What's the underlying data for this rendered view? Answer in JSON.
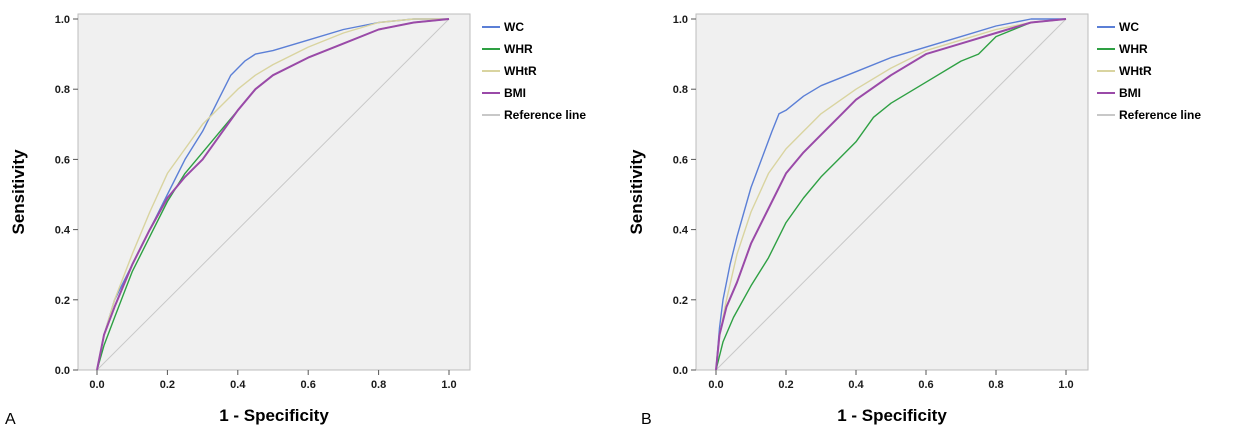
{
  "chart_data": [
    {
      "type": "line",
      "panel_label": "A",
      "xlabel": "1 - Specificity",
      "ylabel": "Sensitivity",
      "xlim": [
        0,
        1
      ],
      "ylim": [
        0,
        1
      ],
      "xticks": [
        "0.0",
        "0.2",
        "0.4",
        "0.6",
        "0.8",
        "1.0"
      ],
      "yticks": [
        "0.0",
        "0.2",
        "0.4",
        "0.6",
        "0.8",
        "1.0"
      ],
      "grid": false,
      "legend_position": "right",
      "series": [
        {
          "name": "WC",
          "color": "#5b7fd6",
          "x": [
            0,
            0.02,
            0.05,
            0.1,
            0.15,
            0.2,
            0.25,
            0.3,
            0.35,
            0.38,
            0.42,
            0.45,
            0.5,
            0.6,
            0.7,
            0.8,
            0.9,
            1.0
          ],
          "y": [
            0,
            0.1,
            0.2,
            0.3,
            0.4,
            0.5,
            0.6,
            0.68,
            0.78,
            0.84,
            0.88,
            0.9,
            0.91,
            0.94,
            0.97,
            0.99,
            1.0,
            1.0
          ]
        },
        {
          "name": "WHR",
          "color": "#2ea043",
          "x": [
            0,
            0.02,
            0.05,
            0.1,
            0.15,
            0.2,
            0.25,
            0.3,
            0.35,
            0.4,
            0.45,
            0.5,
            0.6,
            0.7,
            0.8,
            0.9,
            1.0
          ],
          "y": [
            0,
            0.07,
            0.15,
            0.28,
            0.38,
            0.48,
            0.56,
            0.62,
            0.68,
            0.74,
            0.8,
            0.84,
            0.89,
            0.93,
            0.97,
            0.99,
            1.0
          ]
        },
        {
          "name": "WHtR",
          "color": "#d9d4a0",
          "x": [
            0,
            0.02,
            0.05,
            0.1,
            0.15,
            0.2,
            0.25,
            0.3,
            0.35,
            0.4,
            0.45,
            0.5,
            0.6,
            0.7,
            0.8,
            0.9,
            1.0
          ],
          "y": [
            0,
            0.1,
            0.2,
            0.33,
            0.45,
            0.56,
            0.63,
            0.7,
            0.75,
            0.8,
            0.84,
            0.87,
            0.92,
            0.96,
            0.99,
            1.0,
            1.0
          ]
        },
        {
          "name": "BMI",
          "color": "#9a4aa8",
          "x": [
            0,
            0.02,
            0.05,
            0.1,
            0.15,
            0.2,
            0.25,
            0.3,
            0.35,
            0.4,
            0.45,
            0.5,
            0.6,
            0.7,
            0.8,
            0.9,
            1.0
          ],
          "y": [
            0,
            0.1,
            0.18,
            0.3,
            0.4,
            0.49,
            0.55,
            0.6,
            0.67,
            0.74,
            0.8,
            0.84,
            0.89,
            0.93,
            0.97,
            0.99,
            1.0
          ]
        },
        {
          "name": "Reference line",
          "color": "#c8c8c8",
          "x": [
            0,
            1
          ],
          "y": [
            0,
            1
          ]
        }
      ]
    },
    {
      "type": "line",
      "panel_label": "B",
      "xlabel": "1 - Specificity",
      "ylabel": "Sensitivity",
      "xlim": [
        0,
        1
      ],
      "ylim": [
        0,
        1
      ],
      "xticks": [
        "0.0",
        "0.2",
        "0.4",
        "0.6",
        "0.8",
        "1.0"
      ],
      "yticks": [
        "0.0",
        "0.2",
        "0.4",
        "0.6",
        "0.8",
        "1.0"
      ],
      "grid": false,
      "legend_position": "right",
      "series": [
        {
          "name": "WC",
          "color": "#5b7fd6",
          "x": [
            0,
            0.01,
            0.02,
            0.04,
            0.06,
            0.08,
            0.1,
            0.13,
            0.16,
            0.18,
            0.2,
            0.25,
            0.3,
            0.4,
            0.5,
            0.6,
            0.7,
            0.8,
            0.9,
            1.0
          ],
          "y": [
            0,
            0.12,
            0.2,
            0.3,
            0.38,
            0.45,
            0.52,
            0.6,
            0.68,
            0.73,
            0.74,
            0.78,
            0.81,
            0.85,
            0.89,
            0.92,
            0.95,
            0.98,
            1.0,
            1.0
          ]
        },
        {
          "name": "WHR",
          "color": "#2ea043",
          "x": [
            0,
            0.02,
            0.05,
            0.1,
            0.15,
            0.2,
            0.25,
            0.3,
            0.35,
            0.4,
            0.45,
            0.5,
            0.6,
            0.7,
            0.75,
            0.8,
            0.9,
            1.0
          ],
          "y": [
            0,
            0.08,
            0.15,
            0.24,
            0.32,
            0.42,
            0.49,
            0.55,
            0.6,
            0.65,
            0.72,
            0.76,
            0.82,
            0.88,
            0.9,
            0.95,
            0.99,
            1.0
          ]
        },
        {
          "name": "WHtR",
          "color": "#d9d4a0",
          "x": [
            0,
            0.01,
            0.03,
            0.06,
            0.1,
            0.15,
            0.2,
            0.25,
            0.3,
            0.4,
            0.5,
            0.6,
            0.7,
            0.8,
            0.9,
            1.0
          ],
          "y": [
            0,
            0.1,
            0.2,
            0.33,
            0.45,
            0.56,
            0.63,
            0.68,
            0.73,
            0.8,
            0.86,
            0.91,
            0.94,
            0.97,
            0.99,
            1.0
          ]
        },
        {
          "name": "BMI",
          "color": "#9a4aa8",
          "x": [
            0,
            0.01,
            0.03,
            0.06,
            0.1,
            0.15,
            0.2,
            0.25,
            0.3,
            0.35,
            0.4,
            0.5,
            0.6,
            0.7,
            0.8,
            0.9,
            1.0
          ],
          "y": [
            0,
            0.1,
            0.18,
            0.25,
            0.36,
            0.46,
            0.56,
            0.62,
            0.67,
            0.72,
            0.77,
            0.84,
            0.9,
            0.93,
            0.96,
            0.99,
            1.0
          ]
        },
        {
          "name": "Reference line",
          "color": "#c8c8c8",
          "x": [
            0,
            1
          ],
          "y": [
            0,
            1
          ]
        }
      ]
    }
  ]
}
